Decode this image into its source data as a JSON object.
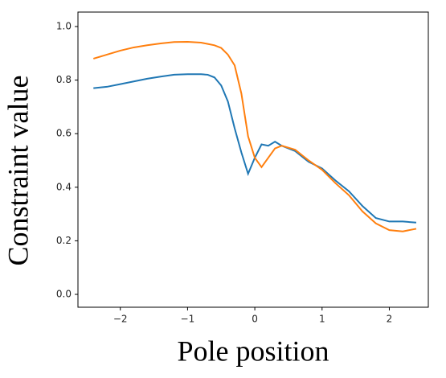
{
  "chart_data": {
    "type": "line",
    "x_label": "Pole position",
    "y_label": "Constraint value",
    "x": [
      -2.4,
      -2.2,
      -2.0,
      -1.8,
      -1.6,
      -1.4,
      -1.2,
      -1.0,
      -0.8,
      -0.7,
      -0.6,
      -0.5,
      -0.4,
      -0.3,
      -0.2,
      -0.1,
      0.0,
      0.1,
      0.2,
      0.3,
      0.4,
      0.6,
      0.8,
      1.0,
      1.2,
      1.4,
      1.6,
      1.8,
      2.0,
      2.2,
      2.4
    ],
    "series": [
      {
        "color": "#1f77b4",
        "values": [
          0.77,
          0.775,
          0.785,
          0.795,
          0.805,
          0.813,
          0.82,
          0.822,
          0.822,
          0.82,
          0.81,
          0.78,
          0.72,
          0.62,
          0.53,
          0.45,
          0.51,
          0.56,
          0.555,
          0.57,
          0.555,
          0.535,
          0.495,
          0.47,
          0.425,
          0.385,
          0.33,
          0.285,
          0.272,
          0.272,
          0.268
        ]
      },
      {
        "color": "#ff7f0e",
        "values": [
          0.88,
          0.895,
          0.91,
          0.922,
          0.93,
          0.937,
          0.942,
          0.943,
          0.94,
          0.935,
          0.93,
          0.92,
          0.895,
          0.855,
          0.75,
          0.59,
          0.51,
          0.475,
          0.51,
          0.545,
          0.555,
          0.54,
          0.5,
          0.465,
          0.415,
          0.37,
          0.31,
          0.265,
          0.24,
          0.235,
          0.245
        ]
      }
    ],
    "xlim": [
      -2.63,
      2.58
    ],
    "ylim": [
      -0.048,
      1.054
    ],
    "xticks": [
      {
        "value": -2,
        "label": "−2"
      },
      {
        "value": -1,
        "label": "−1"
      },
      0,
      1,
      2
    ],
    "yticks": [
      {
        "value": 0,
        "label": "0.0"
      },
      0.2,
      0.4,
      0.6,
      0.8,
      {
        "value": 1,
        "label": "1.0"
      }
    ],
    "grid": false
  }
}
